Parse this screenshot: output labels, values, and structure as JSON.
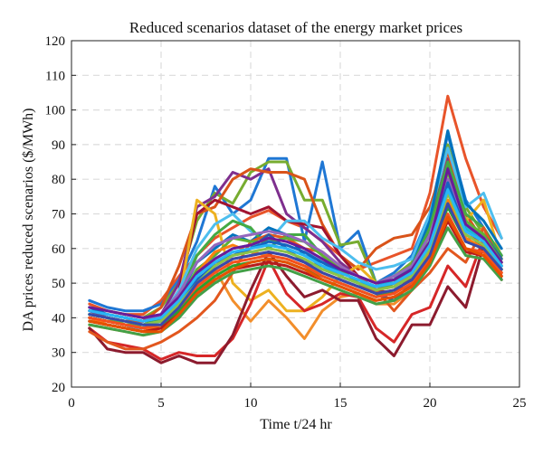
{
  "chart_data": {
    "type": "line",
    "title": "Reduced scenarios dataset of the energy market prices",
    "xlabel": "Time t/24 hr",
    "ylabel": "DA prices reduced scenarios ($/MWh)",
    "xlim": [
      0,
      25
    ],
    "ylim": [
      20,
      120
    ],
    "xticks": [
      0,
      5,
      10,
      15,
      20,
      25
    ],
    "yticks": [
      20,
      30,
      40,
      50,
      60,
      70,
      80,
      90,
      100,
      110,
      120
    ],
    "grid": true,
    "x": [
      1,
      2,
      3,
      4,
      5,
      6,
      7,
      8,
      9,
      10,
      11,
      12,
      13,
      14,
      15,
      16,
      17,
      18,
      19,
      20,
      21,
      22,
      23,
      24
    ],
    "series": [
      {
        "color": "#e8542a",
        "values": [
          44,
          42,
          41,
          41,
          45,
          52,
          58,
          63,
          66,
          69,
          71,
          68,
          66,
          62,
          58,
          54,
          56,
          58,
          60,
          76,
          104,
          86,
          72,
          63
        ]
      },
      {
        "color": "#1f77d4",
        "values": [
          45,
          43,
          42,
          42,
          44,
          51,
          62,
          78,
          70,
          74,
          86,
          86,
          62,
          85,
          60,
          65,
          50,
          53,
          58,
          70,
          93,
          74,
          66,
          58
        ]
      },
      {
        "color": "#77ac30",
        "values": [
          43,
          42,
          41,
          40,
          43,
          50,
          68,
          76,
          73,
          82,
          85,
          85,
          74,
          74,
          61,
          62,
          50,
          52,
          56,
          68,
          90,
          72,
          64,
          56
        ]
      },
      {
        "color": "#7e2f8e",
        "values": [
          42,
          40,
          39,
          39,
          41,
          50,
          72,
          75,
          82,
          80,
          83,
          70,
          66,
          62,
          56,
          52,
          48,
          50,
          54,
          66,
          86,
          70,
          62,
          55
        ]
      },
      {
        "color": "#d95319",
        "values": [
          41,
          40,
          39,
          39,
          43,
          55,
          70,
          72,
          80,
          83,
          82,
          82,
          80,
          67,
          58,
          54,
          60,
          63,
          64,
          72,
          88,
          70,
          62,
          56
        ]
      },
      {
        "color": "#a2142f",
        "values": [
          40,
          39,
          38,
          37,
          40,
          48,
          70,
          74,
          72,
          70,
          72,
          68,
          67,
          66,
          58,
          52,
          48,
          47,
          52,
          62,
          84,
          66,
          60,
          54
        ]
      },
      {
        "color": "#edb120",
        "values": [
          40,
          39,
          38,
          37,
          38,
          45,
          74,
          70,
          50,
          45,
          48,
          42,
          42,
          46,
          52,
          55,
          50,
          50,
          52,
          60,
          80,
          68,
          74,
          57
        ]
      },
      {
        "color": "#4dbeee",
        "values": [
          39,
          38,
          37,
          37,
          40,
          48,
          60,
          67,
          70,
          65,
          62,
          68,
          68,
          63,
          60,
          56,
          54,
          55,
          57,
          70,
          89,
          72,
          76,
          63
        ]
      },
      {
        "color": "#0072bd",
        "values": [
          43,
          41,
          40,
          39,
          40,
          46,
          56,
          60,
          64,
          62,
          66,
          64,
          58,
          56,
          54,
          52,
          50,
          51,
          55,
          68,
          94,
          73,
          68,
          60
        ]
      },
      {
        "color": "#44aa44",
        "values": [
          41,
          40,
          39,
          38,
          40,
          46,
          58,
          64,
          68,
          66,
          60,
          64,
          64,
          58,
          54,
          52,
          50,
          52,
          55,
          66,
          85,
          70,
          66,
          58
        ]
      },
      {
        "color": "#f28e2b",
        "values": [
          38,
          37,
          36,
          35,
          36,
          42,
          50,
          54,
          45,
          39,
          45,
          40,
          34,
          42,
          46,
          47,
          44,
          44,
          48,
          58,
          78,
          62,
          66,
          53
        ]
      },
      {
        "color": "#d62728",
        "values": [
          37,
          33,
          32,
          31,
          28,
          30,
          29,
          29,
          34,
          44,
          57,
          47,
          42,
          44,
          47,
          46,
          37,
          33,
          41,
          43,
          55,
          49,
          63,
          52
        ]
      },
      {
        "color": "#8c1b2e",
        "values": [
          37,
          31,
          30,
          30,
          27,
          29,
          27,
          27,
          35,
          48,
          59,
          52,
          46,
          48,
          45,
          45,
          34,
          29,
          38,
          38,
          49,
          43,
          61,
          51
        ]
      },
      {
        "color": "#e2571e",
        "values": [
          36,
          33,
          31,
          31,
          33,
          36,
          40,
          45,
          53,
          62,
          64,
          63,
          60,
          59,
          55,
          52,
          48,
          42,
          48,
          53,
          60,
          56,
          66,
          55
        ]
      },
      {
        "color": "#2a5caa",
        "values": [
          40,
          39,
          38,
          37,
          38,
          43,
          50,
          56,
          58,
          60,
          64,
          60,
          56,
          55,
          52,
          50,
          47,
          45,
          50,
          60,
          80,
          66,
          64,
          57
        ]
      },
      {
        "color": "#5fb336",
        "values": [
          41,
          40,
          38,
          38,
          39,
          45,
          54,
          58,
          63,
          62,
          62,
          63,
          62,
          58,
          54,
          50,
          48,
          50,
          54,
          64,
          82,
          68,
          64,
          56
        ]
      },
      {
        "color": "#9467bd",
        "values": [
          42,
          41,
          40,
          39,
          41,
          47,
          56,
          61,
          63,
          64,
          65,
          64,
          62,
          59,
          55,
          52,
          50,
          52,
          55,
          64,
          80,
          67,
          63,
          56
        ]
      },
      {
        "color": "#17becf",
        "values": [
          41,
          40,
          39,
          38,
          39,
          44,
          52,
          57,
          60,
          61,
          61,
          60,
          58,
          55,
          52,
          50,
          49,
          51,
          54,
          62,
          78,
          66,
          62,
          55
        ]
      },
      {
        "color": "#c0392b",
        "values": [
          40,
          39,
          38,
          37,
          38,
          43,
          50,
          54,
          57,
          58,
          59,
          58,
          56,
          53,
          51,
          49,
          48,
          49,
          52,
          60,
          76,
          64,
          61,
          54
        ]
      },
      {
        "color": "#2ca02c",
        "values": [
          39,
          38,
          37,
          36,
          37,
          42,
          48,
          52,
          55,
          56,
          57,
          56,
          54,
          52,
          50,
          48,
          46,
          48,
          51,
          58,
          72,
          62,
          60,
          54
        ]
      },
      {
        "color": "#ff7f0e",
        "values": [
          40,
          38,
          37,
          36,
          38,
          44,
          53,
          59,
          61,
          59,
          58,
          57,
          55,
          53,
          51,
          49,
          47,
          48,
          51,
          59,
          74,
          63,
          60,
          53
        ]
      },
      {
        "color": "#1565c0",
        "values": [
          42,
          41,
          40,
          39,
          40,
          45,
          51,
          55,
          58,
          60,
          62,
          61,
          59,
          56,
          53,
          51,
          49,
          50,
          53,
          61,
          79,
          65,
          62,
          55
        ]
      },
      {
        "color": "#6a1b9a",
        "values": [
          43,
          42,
          41,
          40,
          41,
          46,
          53,
          57,
          60,
          61,
          63,
          62,
          60,
          57,
          54,
          52,
          50,
          51,
          54,
          62,
          83,
          67,
          63,
          56
        ]
      },
      {
        "color": "#8bc34a",
        "values": [
          41,
          40,
          39,
          38,
          39,
          44,
          50,
          55,
          58,
          59,
          60,
          59,
          57,
          54,
          52,
          50,
          48,
          49,
          52,
          60,
          76,
          64,
          61,
          54
        ]
      },
      {
        "color": "#b71c1c",
        "values": [
          39,
          38,
          37,
          36,
          37,
          41,
          47,
          51,
          54,
          55,
          56,
          55,
          53,
          51,
          49,
          47,
          45,
          46,
          49,
          56,
          68,
          59,
          58,
          52
        ]
      },
      {
        "color": "#29b6f6",
        "values": [
          42,
          41,
          40,
          39,
          40,
          45,
          52,
          56,
          59,
          60,
          61,
          60,
          58,
          55,
          53,
          51,
          49,
          50,
          53,
          61,
          77,
          65,
          62,
          55
        ]
      },
      {
        "color": "#f4511e",
        "values": [
          40,
          39,
          38,
          37,
          38,
          43,
          49,
          53,
          56,
          57,
          58,
          57,
          55,
          52,
          50,
          48,
          46,
          47,
          50,
          57,
          70,
          60,
          59,
          53
        ]
      },
      {
        "color": "#3949ab",
        "values": [
          41,
          40,
          39,
          38,
          38,
          43,
          50,
          54,
          57,
          58,
          59,
          58,
          56,
          53,
          51,
          49,
          47,
          48,
          51,
          58,
          73,
          62,
          60,
          54
        ]
      },
      {
        "color": "#43a047",
        "values": [
          38,
          37,
          36,
          35,
          36,
          40,
          46,
          50,
          53,
          54,
          55,
          54,
          52,
          50,
          48,
          46,
          44,
          45,
          48,
          55,
          66,
          58,
          57,
          51
        ]
      },
      {
        "color": "#e65100",
        "values": [
          39,
          38,
          37,
          36,
          36,
          41,
          47,
          51,
          54,
          56,
          57,
          56,
          54,
          51,
          49,
          47,
          45,
          46,
          49,
          56,
          69,
          60,
          58,
          52
        ]
      }
    ]
  }
}
